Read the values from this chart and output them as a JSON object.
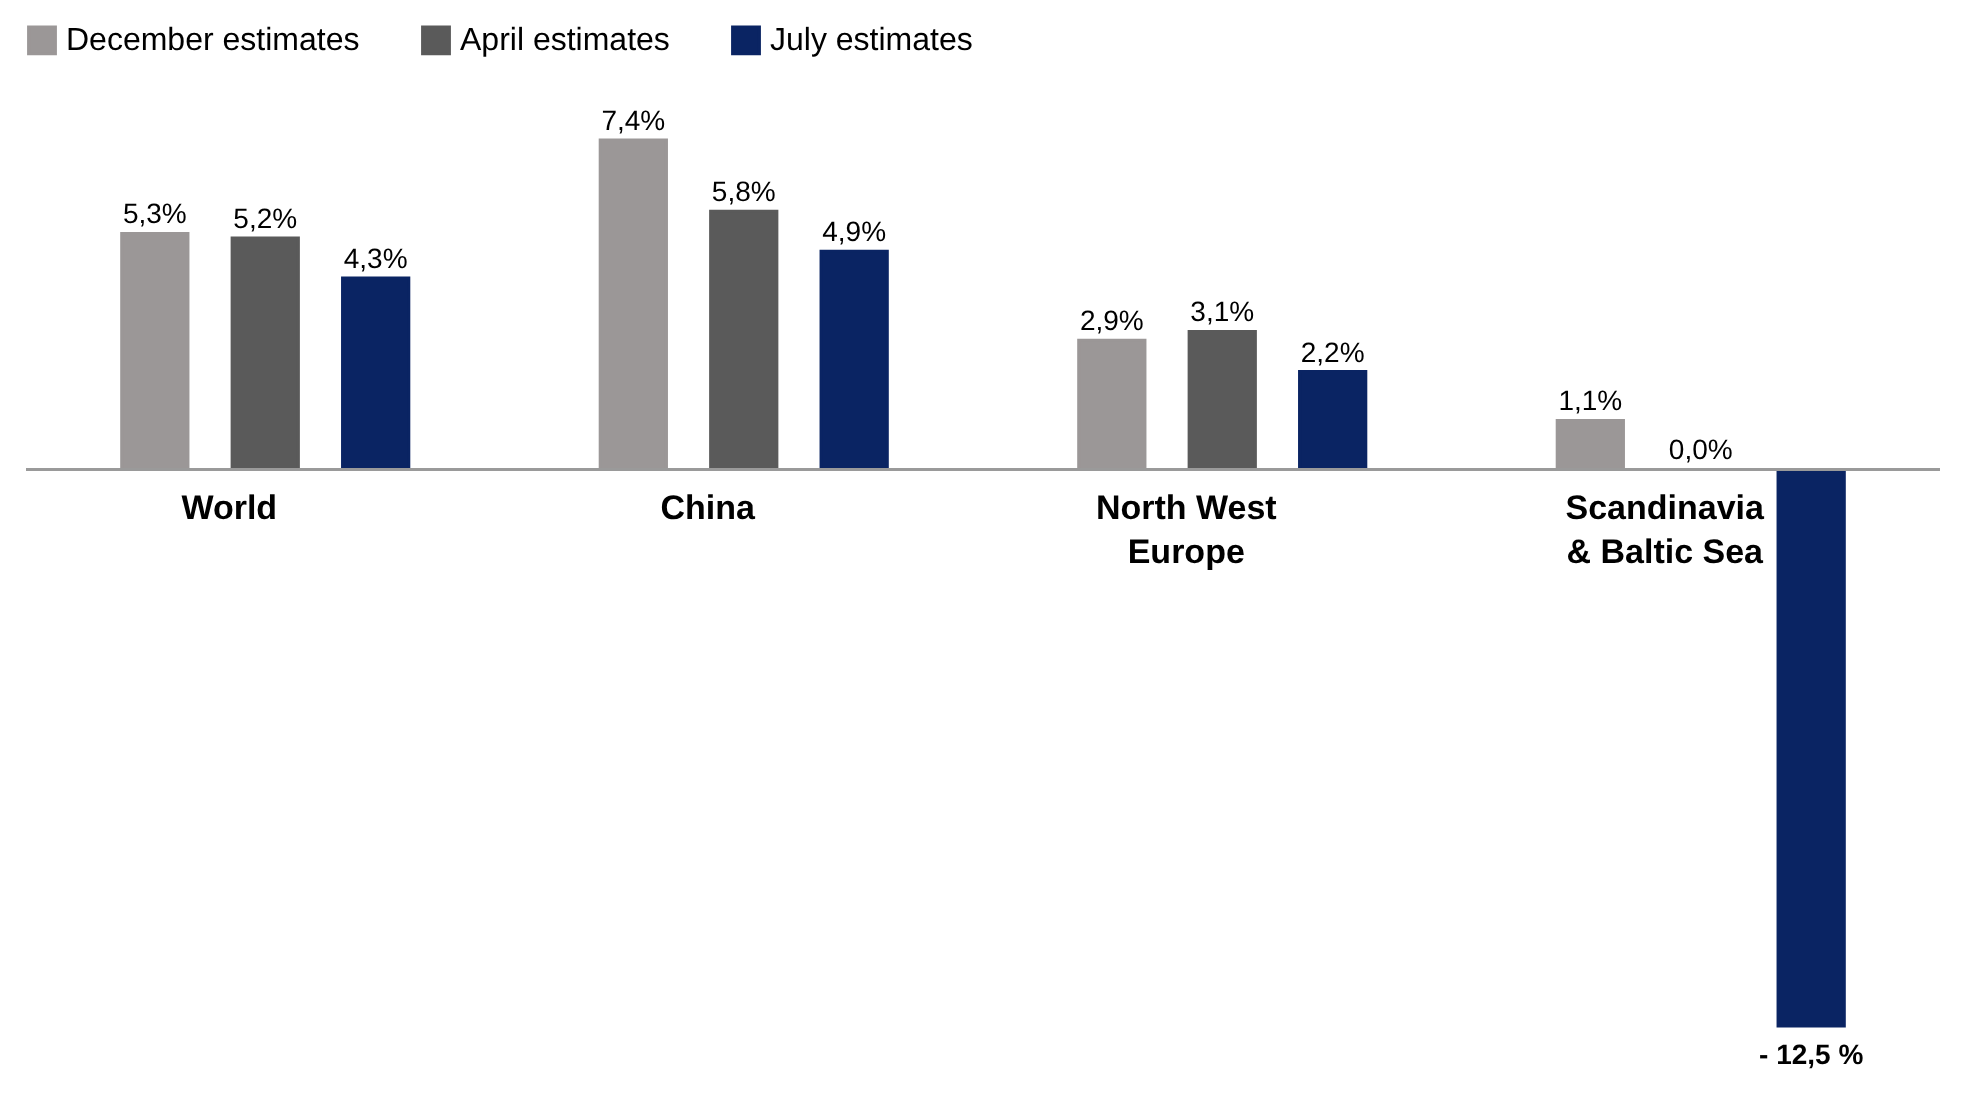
{
  "chart_data": {
    "type": "bar",
    "categories": [
      "World",
      "China",
      "North West\nEurope",
      "Scandinavia\n& Baltic Sea"
    ],
    "series": [
      {
        "name": "December estimates",
        "color": "#9b9797",
        "values": [
          5.3,
          7.4,
          2.9,
          1.1
        ],
        "value_labels": [
          "5,3%",
          "7,4%",
          "2,9%",
          "1,1%"
        ]
      },
      {
        "name": "April estimates",
        "color": "#5a5a5a",
        "values": [
          5.2,
          5.8,
          3.1,
          0.0
        ],
        "value_labels": [
          "5,2%",
          "5,8%",
          "3,1%",
          "0,0%"
        ]
      },
      {
        "name": "July estimates",
        "color": "#0a2463",
        "values": [
          4.3,
          4.9,
          2.2,
          -12.5
        ],
        "value_labels": [
          "4,3%",
          "4,9%",
          "2,2%",
          "- 12,5 %"
        ]
      }
    ],
    "legend": "top left",
    "grid": false
  }
}
